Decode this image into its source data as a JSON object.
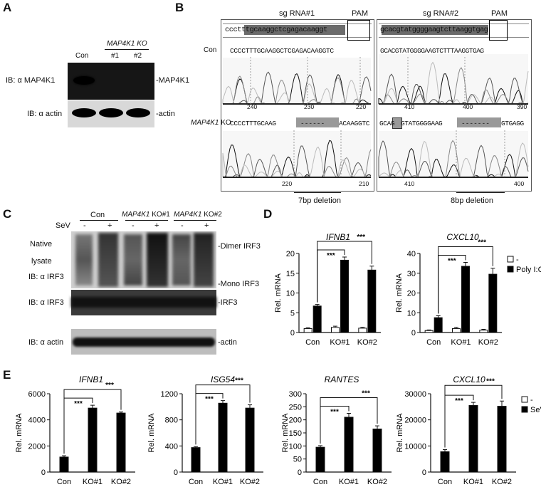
{
  "panels": {
    "A": "A",
    "B": "B",
    "C": "C",
    "D": "D",
    "E": "E"
  },
  "panelA": {
    "ko_header": "MAP4K1 KO",
    "lanes": [
      "Con",
      "#1",
      "#2"
    ],
    "blot1_label": "IB: α MAP4K1",
    "blot1_right": "-MAP4K1",
    "blot2_label": "IB: α actin",
    "blot2_right": "-actin"
  },
  "panelB": {
    "sg1": "sg RNA#1",
    "sg2": "sg RNA#2",
    "pam": "PAM",
    "con_label": "Con",
    "ko_label_gene": "MAP4K1",
    "ko_label_suffix": " KO",
    "ref1": "ccctttgcaaggctcgagacaaggt",
    "ref2": "gcacgtatggggaagtcttaaggtgag",
    "con_seq1": "CCCCTTTGCAAGGCTCGAGACAAGGTC",
    "con_seq2": "GCACGTATGGGGAAGTCTTTAAGGTGAG",
    "ko_seq1_a": "CCCCTTTGCAAG",
    "ko_seq1_gap": "------",
    "ko_seq1_b": "ACAAGGTC",
    "ko_seq2_a": "GCAG",
    "ko_seq2_b": "GTATGGGGAAG",
    "ko_seq2_gap": "-------",
    "ko_seq2_c": "GTGAGG",
    "ticks1_con": [
      "240",
      "230",
      "220"
    ],
    "ticks2_con": [
      "410",
      "400",
      "390"
    ],
    "ticks1_ko": [
      "220",
      "210"
    ],
    "ticks2_ko": [
      "410",
      "400"
    ],
    "del1": "7bp deletion",
    "del2": "8bp  deletion"
  },
  "panelC": {
    "header_con": "Con",
    "header_ko1_gene": "MAP4K1",
    "header_ko1_suffix": " KO#1",
    "header_ko2_gene": "MAP4K1",
    "header_ko2_suffix": " KO#2",
    "sev": "SeV",
    "signs": [
      "-",
      "+",
      "-",
      "+",
      "-",
      "+"
    ],
    "native": "Native",
    "lysate": "lysate",
    "ib_irf3_1": "IB: α IRF3",
    "dimer": "-Dimer IRF3",
    "mono": "-Mono IRF3",
    "ib_irf3_2": "IB: α IRF3",
    "irf3": "-IRF3",
    "ib_actin": "IB: α actin",
    "actin": "-actin"
  },
  "chart_data": [
    {
      "id": "D-IFNB1",
      "type": "bar",
      "title": "IFNB1",
      "ylabel": "Rel. mRNA",
      "categories": [
        "Con",
        "KO#1",
        "KO#2"
      ],
      "ylim": [
        0,
        20
      ],
      "yticks": [
        0,
        5,
        10,
        15,
        20
      ],
      "series": [
        {
          "name": "-",
          "values": [
            1,
            1.3,
            1.1
          ],
          "errors": [
            0.2,
            0.3,
            0.2
          ],
          "fill": "#ffffff"
        },
        {
          "name": "Poly I:C",
          "values": [
            6.7,
            18.3,
            15.8
          ],
          "errors": [
            0.4,
            0.8,
            1.0
          ],
          "fill": "#000000"
        }
      ],
      "sig": [
        "***",
        "***"
      ]
    },
    {
      "id": "D-CXCL10",
      "type": "bar",
      "title": "CXCL10",
      "ylabel": "Rel. mRNA",
      "categories": [
        "Con",
        "KO#1",
        "KO#2"
      ],
      "ylim": [
        0,
        40
      ],
      "yticks": [
        0,
        10,
        20,
        30,
        40
      ],
      "series": [
        {
          "name": "-",
          "values": [
            1,
            2,
            1.2
          ],
          "errors": [
            0.3,
            0.6,
            0.4
          ],
          "fill": "#ffffff"
        },
        {
          "name": "Poly I:C",
          "values": [
            7.5,
            33.5,
            29.5
          ],
          "errors": [
            1.0,
            2.0,
            3.0
          ],
          "fill": "#000000"
        }
      ],
      "legend": [
        "-",
        "Poly I:C"
      ],
      "sig": [
        "***",
        "***"
      ]
    },
    {
      "id": "E-IFNB1",
      "type": "bar",
      "title": "IFNB1",
      "ylabel": "Rel. mRNA",
      "categories": [
        "Con",
        "KO#1",
        "KO#2"
      ],
      "ylim": [
        0,
        6000
      ],
      "yticks": [
        0,
        2000,
        4000,
        6000
      ],
      "series": [
        {
          "name": "SeV",
          "values": [
            1150,
            4900,
            4520
          ],
          "errors": [
            100,
            220,
            80
          ],
          "fill": "#000000"
        }
      ],
      "sig": [
        "***",
        "***"
      ]
    },
    {
      "id": "E-ISG54",
      "type": "bar",
      "title": "ISG54",
      "ylabel": "Rel. mRNA",
      "categories": [
        "Con",
        "KO#1",
        "KO#2"
      ],
      "ylim": [
        0,
        1200
      ],
      "yticks": [
        0,
        400,
        800,
        1200
      ],
      "series": [
        {
          "name": "SeV",
          "values": [
            375,
            1055,
            980
          ],
          "errors": [
            15,
            40,
            50
          ],
          "fill": "#000000"
        }
      ],
      "sig": [
        "***",
        "***"
      ]
    },
    {
      "id": "E-RANTES",
      "type": "bar",
      "title": "RANTES",
      "ylabel": "Rel. mRNA",
      "categories": [
        "Con",
        "KO#1",
        "KO#2"
      ],
      "ylim": [
        0,
        300
      ],
      "yticks": [
        0,
        50,
        100,
        150,
        200,
        250,
        300
      ],
      "series": [
        {
          "name": "SeV",
          "values": [
            95,
            210,
            165
          ],
          "errors": [
            6,
            15,
            12
          ],
          "fill": "#000000"
        }
      ],
      "sig": [
        "***",
        "***"
      ]
    },
    {
      "id": "E-CXCL10",
      "type": "bar",
      "title": "CXCL10",
      "ylabel": "Rel. mRNA",
      "categories": [
        "Con",
        "KO#1",
        "KO#2"
      ],
      "ylim": [
        0,
        30000
      ],
      "yticks": [
        0,
        10000,
        20000,
        30000
      ],
      "series": [
        {
          "name": "SeV",
          "values": [
            7800,
            25500,
            25200
          ],
          "errors": [
            800,
            1200,
            2000
          ],
          "fill": "#000000"
        }
      ],
      "legend": [
        "-",
        "SeV"
      ],
      "sig": [
        "***",
        "***"
      ]
    }
  ]
}
